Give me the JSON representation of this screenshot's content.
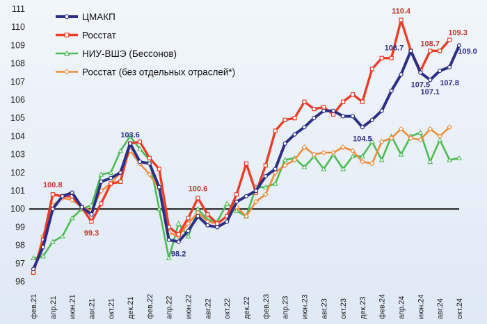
{
  "chart_data": {
    "type": "line",
    "title": "",
    "xlabel": "",
    "ylabel": "",
    "ylim": [
      96,
      111
    ],
    "yticks": [
      "96",
      "97",
      "98",
      "99",
      "100",
      "101",
      "102",
      "103",
      "104",
      "105",
      "106",
      "107",
      "108",
      "109",
      "110",
      "111"
    ],
    "reference_line": 100,
    "categories": [
      "фев.21",
      "мар.21",
      "апр.21",
      "май.21",
      "июн.21",
      "июл.21",
      "авг.21",
      "сен.21",
      "окт.21",
      "ноя.21",
      "дек.21",
      "янв.22",
      "фев.22",
      "мар.22",
      "апр.22",
      "май.22",
      "июн.22",
      "июл.22",
      "авг.22",
      "сен.22",
      "окт.22",
      "ноя.22",
      "дек.22",
      "янв.23",
      "фев.23",
      "мар.23",
      "апр.23",
      "май.23",
      "июн.23",
      "июл.23",
      "авг.23",
      "сен.23",
      "окт.23",
      "ноя.23",
      "дек.23",
      "янв.24",
      "фев.24",
      "мар.24",
      "апр.24",
      "май.24",
      "июн.24",
      "июл.24",
      "авг.24",
      "сен.24",
      "окт.24"
    ],
    "tick_labels": [
      "фев.21",
      "апр.21",
      "июн.21",
      "авг.21",
      "окт.21",
      "дек.21",
      "фев.22",
      "апр.22",
      "июн.22",
      "авг.22",
      "окт.22",
      "дек.22",
      "фев.23",
      "апр.23",
      "июн.23",
      "авг.23",
      "окт.23",
      "дек.23",
      "фев.24",
      "апр.24",
      "июн.24",
      "авг.24",
      "окт.24"
    ],
    "series": [
      {
        "name": "ЦМАКП",
        "color": "#2b2f86",
        "marker": "circle",
        "values": [
          96.7,
          97.9,
          100.0,
          100.7,
          100.9,
          100.1,
          99.7,
          101.5,
          101.7,
          102.0,
          103.6,
          102.6,
          102.5,
          101.2,
          98.3,
          98.2,
          98.8,
          99.6,
          99.1,
          99.0,
          99.3,
          100.4,
          100.7,
          101.0,
          101.8,
          102.2,
          103.6,
          104.1,
          104.5,
          105.0,
          105.4,
          105.4,
          105.1,
          105.1,
          104.5,
          104.9,
          105.4,
          106.5,
          107.4,
          108.7,
          107.5,
          107.1,
          107.6,
          107.8,
          109.0
        ]
      },
      {
        "name": "Росстат",
        "color": "#ec3b26",
        "marker": "square",
        "values": [
          96.5,
          98.3,
          100.8,
          100.7,
          100.7,
          100.1,
          99.3,
          100.3,
          101.4,
          101.5,
          103.6,
          103.7,
          102.8,
          102.2,
          99.0,
          98.6,
          99.5,
          100.6,
          99.7,
          99.2,
          99.6,
          100.8,
          102.5,
          100.9,
          102.4,
          104.3,
          104.9,
          105.0,
          105.9,
          105.5,
          105.6,
          105.2,
          105.9,
          106.3,
          105.9,
          107.7,
          108.3,
          108.3,
          110.4,
          108.7,
          107.6,
          108.7,
          108.7,
          109.3,
          null
        ]
      },
      {
        "name": "НИУ-ВШЭ (Бессонов)",
        "color": "#4cbb54",
        "marker": "triangle",
        "values": [
          97.3,
          97.4,
          98.2,
          98.5,
          99.5,
          100.0,
          100.2,
          101.9,
          102.0,
          103.2,
          104.0,
          103.3,
          102.7,
          100.0,
          97.3,
          99.2,
          98.5,
          100.0,
          99.4,
          99.3,
          100.3,
          99.9,
          99.6,
          101.2,
          101.2,
          101.4,
          102.7,
          102.8,
          102.3,
          102.9,
          102.2,
          103.0,
          102.2,
          102.9,
          102.9,
          103.7,
          102.7,
          104.0,
          103.0,
          104.0,
          104.2,
          102.6,
          103.8,
          102.7,
          102.8
        ]
      },
      {
        "name": "Росстат (без отдельных отраслей*)",
        "color": "#f08b3a",
        "marker": "diamond",
        "values": [
          96.5,
          98.5,
          100.2,
          100.6,
          100.5,
          100.1,
          99.9,
          101.0,
          101.4,
          102.0,
          103.2,
          102.5,
          101.9,
          101.1,
          98.7,
          98.5,
          99.2,
          99.8,
          99.3,
          99.2,
          99.6,
          100.1,
          99.6,
          100.4,
          100.8,
          102.0,
          102.4,
          102.7,
          103.4,
          103.0,
          103.1,
          103.1,
          103.4,
          103.2,
          102.6,
          102.5,
          103.7,
          103.9,
          104.4,
          103.9,
          103.8,
          104.4,
          104.0,
          104.5,
          null
        ]
      }
    ],
    "annotations": [
      {
        "text": "100.8",
        "series": 1,
        "index": 2,
        "color": "#c0392b"
      },
      {
        "text": "99.3",
        "series": 1,
        "index": 6,
        "color": "#c0392b"
      },
      {
        "text": "103.6",
        "series": 0,
        "index": 10,
        "color": "#2b2f86"
      },
      {
        "text": "98.2",
        "series": 0,
        "index": 15,
        "color": "#2b2f86"
      },
      {
        "text": "100.6",
        "series": 1,
        "index": 17,
        "color": "#c0392b"
      },
      {
        "text": "104.5",
        "series": 0,
        "index": 34,
        "color": "#2b2f86"
      },
      {
        "text": "108.7",
        "series": 0,
        "index": 39,
        "color": "#2b2f86"
      },
      {
        "text": "110.4",
        "series": 1,
        "index": 38,
        "color": "#c0392b"
      },
      {
        "text": "107.5",
        "series": 0,
        "index": 40,
        "color": "#2b2f86"
      },
      {
        "text": "107.1",
        "series": 0,
        "index": 41,
        "color": "#2b2f86"
      },
      {
        "text": "108.7",
        "series": 1,
        "index": 42,
        "color": "#c0392b"
      },
      {
        "text": "109.3",
        "series": 1,
        "index": 43,
        "color": "#c0392b"
      },
      {
        "text": "109.0",
        "series": 0,
        "index": 44,
        "color": "#2b2f86"
      },
      {
        "text": "107.8",
        "series": 0,
        "index": 43,
        "color": "#2b2f86"
      }
    ],
    "legend_position": "top-left"
  }
}
